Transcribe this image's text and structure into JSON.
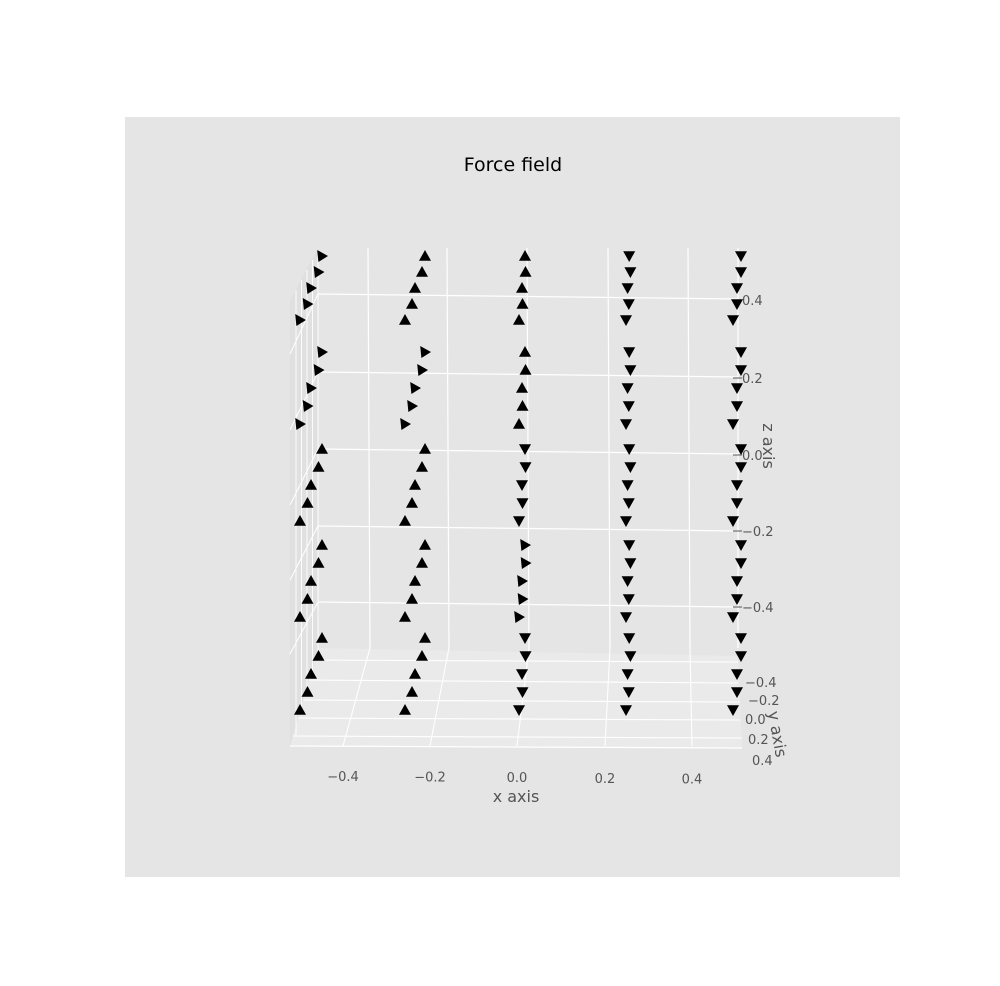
{
  "chart_data": {
    "type": "3d-quiver",
    "title": "Force field",
    "xlabel": "x axis",
    "ylabel": "y axis",
    "zlabel": "z axis",
    "x_ticks": [
      "−0.4",
      "−0.2",
      "0.0",
      "0.2",
      "0.4"
    ],
    "y_ticks": [
      "−0.4",
      "−0.2",
      "0.0",
      "0.2",
      "0.4"
    ],
    "z_ticks": [
      "−0.4",
      "−0.2",
      "0.0",
      "0.2",
      "0.4"
    ],
    "xlim": [
      -0.5,
      0.5
    ],
    "ylim": [
      -0.5,
      0.5
    ],
    "zlim": [
      -0.5,
      0.5
    ],
    "grid": true,
    "grid_points": {
      "x": [
        -0.5,
        -0.25,
        0.0,
        0.25,
        0.5
      ],
      "y": [
        -0.5,
        -0.25,
        0.0,
        0.25,
        0.5
      ],
      "z": [
        -0.5,
        -0.25,
        0.0,
        0.25,
        0.5
      ]
    },
    "marker": "triangle",
    "marker_color": "#000000",
    "background_color": "#e5e5e5",
    "gridline_color": "#ffffff"
  }
}
